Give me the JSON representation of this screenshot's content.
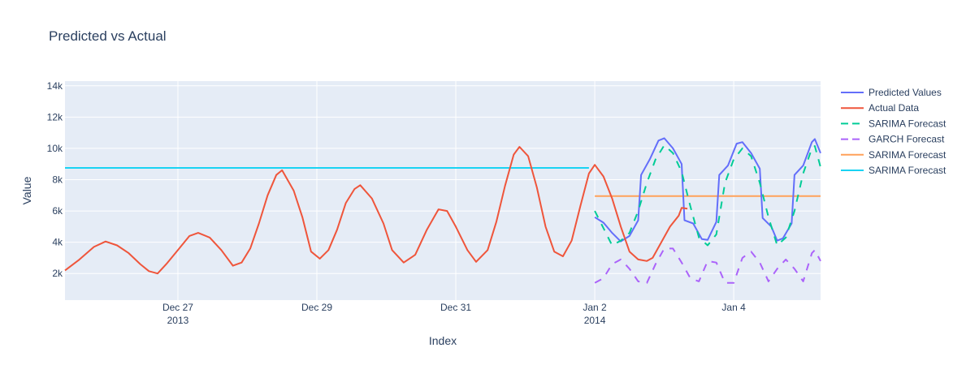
{
  "chart_data": {
    "type": "line",
    "title": "Predicted vs Actual",
    "xlabel": "Index",
    "ylabel": "Value",
    "xlim": [
      "2013-12-25T09:00",
      "2014-01-05T06:00"
    ],
    "ylim": [
      300,
      14300
    ],
    "y_ticks": [
      {
        "value": 2000,
        "label": "2k"
      },
      {
        "value": 4000,
        "label": "4k"
      },
      {
        "value": 6000,
        "label": "6k"
      },
      {
        "value": 8000,
        "label": "8k"
      },
      {
        "value": 10000,
        "label": "10k"
      },
      {
        "value": 12000,
        "label": "12k"
      },
      {
        "value": 14000,
        "label": "14k"
      }
    ],
    "x_ticks": [
      {
        "value": "2013-12-27",
        "label": "Dec 27",
        "sublabel": "2013"
      },
      {
        "value": "2013-12-29",
        "label": "Dec 29",
        "sublabel": ""
      },
      {
        "value": "2013-12-31",
        "label": "Dec 31",
        "sublabel": ""
      },
      {
        "value": "2014-01-02",
        "label": "Jan 2",
        "sublabel": "2014"
      },
      {
        "value": "2014-01-04",
        "label": "Jan 4",
        "sublabel": ""
      }
    ],
    "grid": true,
    "legend_position": "top-right",
    "series": [
      {
        "name": "Predicted Values",
        "color": "#636efa",
        "dash": "solid",
        "points": [
          [
            "2014-01-02T00:00",
            5600
          ],
          [
            "2014-01-02T03:00",
            5250
          ],
          [
            "2014-01-02T06:00",
            4600
          ],
          [
            "2014-01-02T09:00",
            4050
          ],
          [
            "2014-01-02T12:00",
            4400
          ],
          [
            "2014-01-02T15:00",
            5400
          ],
          [
            "2014-01-02T16:00",
            8300
          ],
          [
            "2014-01-02T19:00",
            9300
          ],
          [
            "2014-01-02T22:00",
            10500
          ],
          [
            "2014-01-03T00:00",
            10650
          ],
          [
            "2014-01-03T03:00",
            10000
          ],
          [
            "2014-01-03T06:00",
            9000
          ],
          [
            "2014-01-03T07:00",
            5400
          ],
          [
            "2014-01-03T10:00",
            5200
          ],
          [
            "2014-01-03T13:00",
            4200
          ],
          [
            "2014-01-03T15:00",
            4150
          ],
          [
            "2014-01-03T18:00",
            5300
          ],
          [
            "2014-01-03T19:00",
            8300
          ],
          [
            "2014-01-03T22:00",
            8900
          ],
          [
            "2014-01-04T01:00",
            10300
          ],
          [
            "2014-01-04T03:00",
            10400
          ],
          [
            "2014-01-04T06:00",
            9700
          ],
          [
            "2014-01-04T09:00",
            8700
          ],
          [
            "2014-01-04T10:00",
            5550
          ],
          [
            "2014-01-04T13:00",
            5000
          ],
          [
            "2014-01-04T15:00",
            4100
          ],
          [
            "2014-01-04T17:00",
            4250
          ],
          [
            "2014-01-04T20:00",
            5200
          ],
          [
            "2014-01-04T21:00",
            8300
          ],
          [
            "2014-01-05T00:00",
            8900
          ],
          [
            "2014-01-05T03:00",
            10400
          ],
          [
            "2014-01-05T04:00",
            10600
          ],
          [
            "2014-01-05T06:00",
            9700
          ]
        ]
      },
      {
        "name": "Actual Data",
        "color": "#ef553b",
        "dash": "solid",
        "points": [
          [
            "2013-12-25T09:00",
            2200
          ],
          [
            "2013-12-25T14:00",
            2900
          ],
          [
            "2013-12-25T19:00",
            3700
          ],
          [
            "2013-12-25T23:00",
            4050
          ],
          [
            "2013-12-26T03:00",
            3800
          ],
          [
            "2013-12-26T07:00",
            3300
          ],
          [
            "2013-12-26T11:00",
            2600
          ],
          [
            "2013-12-26T14:00",
            2150
          ],
          [
            "2013-12-26T17:00",
            2000
          ],
          [
            "2013-12-26T20:00",
            2600
          ],
          [
            "2013-12-27T00:00",
            3500
          ],
          [
            "2013-12-27T04:00",
            4400
          ],
          [
            "2013-12-27T07:00",
            4600
          ],
          [
            "2013-12-27T11:00",
            4300
          ],
          [
            "2013-12-27T15:00",
            3500
          ],
          [
            "2013-12-27T19:00",
            2500
          ],
          [
            "2013-12-27T22:00",
            2700
          ],
          [
            "2013-12-28T01:00",
            3600
          ],
          [
            "2013-12-28T04:00",
            5200
          ],
          [
            "2013-12-28T07:00",
            7000
          ],
          [
            "2013-12-28T10:00",
            8300
          ],
          [
            "2013-12-28T12:00",
            8600
          ],
          [
            "2013-12-28T16:00",
            7300
          ],
          [
            "2013-12-28T19:00",
            5600
          ],
          [
            "2013-12-28T22:00",
            3400
          ],
          [
            "2013-12-29T01:00",
            2950
          ],
          [
            "2013-12-29T04:00",
            3500
          ],
          [
            "2013-12-29T07:00",
            4800
          ],
          [
            "2013-12-29T10:00",
            6500
          ],
          [
            "2013-12-29T13:00",
            7400
          ],
          [
            "2013-12-29T15:00",
            7650
          ],
          [
            "2013-12-29T19:00",
            6800
          ],
          [
            "2013-12-29T23:00",
            5200
          ],
          [
            "2013-12-30T02:00",
            3500
          ],
          [
            "2013-12-30T06:00",
            2700
          ],
          [
            "2013-12-30T10:00",
            3200
          ],
          [
            "2013-12-30T14:00",
            4800
          ],
          [
            "2013-12-30T18:00",
            6100
          ],
          [
            "2013-12-30T21:00",
            6000
          ],
          [
            "2013-12-31T00:00",
            5000
          ],
          [
            "2013-12-31T04:00",
            3500
          ],
          [
            "2013-12-31T07:00",
            2750
          ],
          [
            "2013-12-31T11:00",
            3500
          ],
          [
            "2013-12-31T14:00",
            5300
          ],
          [
            "2013-12-31T17:00",
            7600
          ],
          [
            "2013-12-31T20:00",
            9600
          ],
          [
            "2013-12-31T22:00",
            10100
          ],
          [
            "2014-01-01T01:00",
            9500
          ],
          [
            "2014-01-01T04:00",
            7500
          ],
          [
            "2014-01-01T07:00",
            5000
          ],
          [
            "2014-01-01T10:00",
            3400
          ],
          [
            "2014-01-01T13:00",
            3100
          ],
          [
            "2014-01-01T16:00",
            4100
          ],
          [
            "2014-01-01T19:00",
            6300
          ],
          [
            "2014-01-01T22:00",
            8400
          ],
          [
            "2014-01-02T00:00",
            8950
          ],
          [
            "2014-01-02T03:00",
            8200
          ],
          [
            "2014-01-02T06:00",
            6800
          ],
          [
            "2014-01-02T09:00",
            5000
          ],
          [
            "2014-01-02T12:00",
            3400
          ],
          [
            "2014-01-02T15:00",
            2900
          ],
          [
            "2014-01-02T18:00",
            2800
          ],
          [
            "2014-01-02T20:00",
            3000
          ],
          [
            "2014-01-02T23:00",
            4000
          ],
          [
            "2014-01-03T02:00",
            5000
          ],
          [
            "2014-01-03T05:00",
            5700
          ],
          [
            "2014-01-03T06:00",
            6200
          ],
          [
            "2014-01-03T08:00",
            6150
          ]
        ]
      },
      {
        "name": "SARIMA Forecast",
        "color": "#00cc96",
        "dash": "dash",
        "points": [
          [
            "2014-01-02T00:00",
            6000
          ],
          [
            "2014-01-02T03:00",
            4900
          ],
          [
            "2014-01-02T06:00",
            3800
          ],
          [
            "2014-01-02T09:00",
            4100
          ],
          [
            "2014-01-02T12:00",
            4600
          ],
          [
            "2014-01-02T15:00",
            6000
          ],
          [
            "2014-01-02T18:00",
            7800
          ],
          [
            "2014-01-02T21:00",
            9300
          ],
          [
            "2014-01-03T00:00",
            10200
          ],
          [
            "2014-01-03T03:00",
            9700
          ],
          [
            "2014-01-03T06:00",
            8500
          ],
          [
            "2014-01-03T09:00",
            6300
          ],
          [
            "2014-01-03T12:00",
            4300
          ],
          [
            "2014-01-03T15:00",
            3800
          ],
          [
            "2014-01-03T18:00",
            4500
          ],
          [
            "2014-01-03T21:00",
            7800
          ],
          [
            "2014-01-04T00:00",
            9300
          ],
          [
            "2014-01-04T03:00",
            10000
          ],
          [
            "2014-01-04T06:00",
            9500
          ],
          [
            "2014-01-04T09:00",
            7800
          ],
          [
            "2014-01-04T12:00",
            5600
          ],
          [
            "2014-01-04T15:00",
            3800
          ],
          [
            "2014-01-04T18:00",
            4300
          ],
          [
            "2014-01-04T21:00",
            6000
          ],
          [
            "2014-01-05T00:00",
            8400
          ],
          [
            "2014-01-05T03:00",
            10000
          ],
          [
            "2014-01-05T04:00",
            10150
          ],
          [
            "2014-01-05T06:00",
            8800
          ]
        ]
      },
      {
        "name": "GARCH Forecast",
        "color": "#ab63fa",
        "dash": "dash",
        "points": [
          [
            "2014-01-02T00:00",
            1400
          ],
          [
            "2014-01-02T03:00",
            1700
          ],
          [
            "2014-01-02T06:00",
            2600
          ],
          [
            "2014-01-02T09:00",
            2900
          ],
          [
            "2014-01-02T12:00",
            2300
          ],
          [
            "2014-01-02T15:00",
            1500
          ],
          [
            "2014-01-02T18:00",
            1400
          ],
          [
            "2014-01-02T21:00",
            2600
          ],
          [
            "2014-01-03T00:00",
            3600
          ],
          [
            "2014-01-03T03:00",
            3600
          ],
          [
            "2014-01-03T06:00",
            2700
          ],
          [
            "2014-01-03T09:00",
            1700
          ],
          [
            "2014-01-03T12:00",
            1500
          ],
          [
            "2014-01-03T15:00",
            2800
          ],
          [
            "2014-01-03T18:00",
            2700
          ],
          [
            "2014-01-03T21:00",
            1400
          ],
          [
            "2014-01-04T00:00",
            1400
          ],
          [
            "2014-01-04T03:00",
            3000
          ],
          [
            "2014-01-04T06:00",
            3400
          ],
          [
            "2014-01-04T09:00",
            2700
          ],
          [
            "2014-01-04T12:00",
            1500
          ],
          [
            "2014-01-04T15:00",
            2300
          ],
          [
            "2014-01-04T18:00",
            2900
          ],
          [
            "2014-01-04T21:00",
            2300
          ],
          [
            "2014-01-05T00:00",
            1500
          ],
          [
            "2014-01-05T03:00",
            3300
          ],
          [
            "2014-01-05T04:00",
            3500
          ],
          [
            "2014-01-05T06:00",
            2800
          ]
        ]
      },
      {
        "name": "SARIMA Forecast",
        "color": "#ffa15a",
        "dash": "solid",
        "points": [
          [
            "2014-01-02T00:00",
            6950
          ],
          [
            "2014-01-05T06:00",
            6950
          ]
        ]
      },
      {
        "name": "SARIMA Forecast",
        "color": "#19d3f3",
        "dash": "solid",
        "points": [
          [
            "2013-12-25T09:00",
            8750
          ],
          [
            "2014-01-01T22:00",
            8750
          ]
        ]
      }
    ]
  }
}
